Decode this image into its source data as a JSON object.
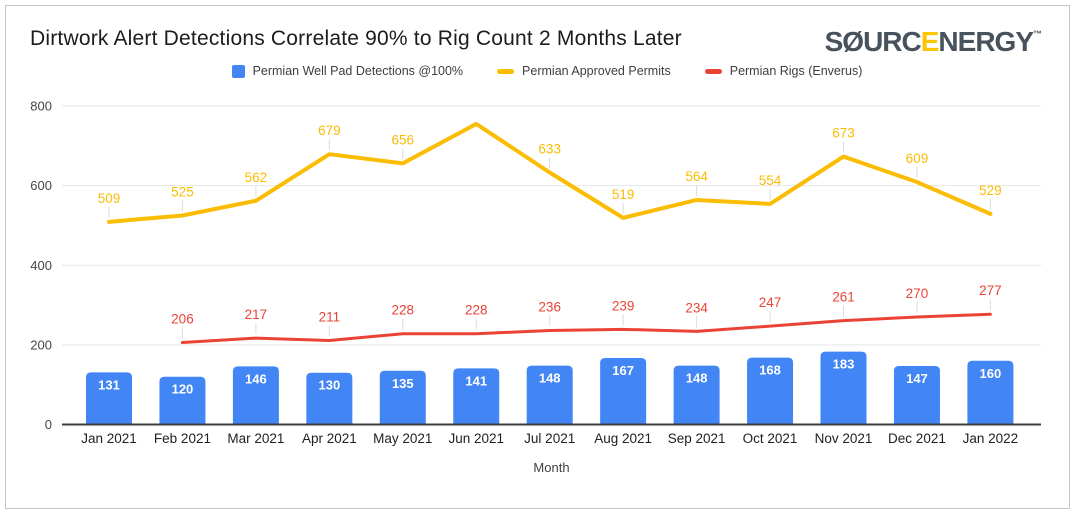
{
  "header": {
    "title": "Dirtwork Alert Detections Correlate 90% to Rig Count 2 Months Later",
    "logo": {
      "part1": "S",
      "slashed_o": "Ø",
      "part2": "URC",
      "accent_letter": "E",
      "part3": "NERGY",
      "trademark": "™"
    }
  },
  "legend": {
    "items": [
      {
        "label": "Permian Well Pad Detections @100%",
        "color": "#4285f4",
        "marker": "square"
      },
      {
        "label": "Permian Approved Permits",
        "color": "#fbbc04",
        "marker": "dash"
      },
      {
        "label": "Permian Rigs (Enverus)",
        "color": "#ea4335",
        "marker": "dash"
      }
    ]
  },
  "chart_data": {
    "type": "combo",
    "title": "Dirtwork Alert Detections Correlate 90% to Rig Count 2 Months Later",
    "categories": [
      "Jan 2021",
      "Feb 2021",
      "Mar 2021",
      "Apr 2021",
      "May 2021",
      "Jun 2021",
      "Jul 2021",
      "Aug 2021",
      "Sep 2021",
      "Oct 2021",
      "Nov 2021",
      "Dec 2021",
      "Jan 2022"
    ],
    "series": [
      {
        "name": "Permian Well Pad Detections @100%",
        "type": "bar",
        "color": "#4285f4",
        "values": [
          131,
          120,
          146,
          130,
          135,
          141,
          148,
          167,
          148,
          168,
          183,
          147,
          160
        ],
        "data_labels": [
          "131",
          "120",
          "146",
          "130",
          "135",
          "141",
          "148",
          "167",
          "148",
          "168",
          "183",
          "147",
          "160"
        ],
        "label_color": "#ffffff"
      },
      {
        "name": "Permian Approved Permits",
        "type": "line",
        "color": "#fbbc04",
        "values": [
          509,
          525,
          562,
          679,
          656,
          755,
          633,
          519,
          564,
          554,
          673,
          609,
          529
        ],
        "data_labels": [
          "509",
          "525",
          "562",
          "679",
          "656",
          "",
          "633",
          "519",
          "564",
          "554",
          "673",
          "609",
          "529"
        ],
        "label_color": "#fbbc04"
      },
      {
        "name": "Permian Rigs (Enverus)",
        "type": "line",
        "color": "#ea4335",
        "values": [
          null,
          206,
          217,
          211,
          228,
          228,
          236,
          239,
          234,
          247,
          261,
          270,
          277
        ],
        "data_labels": [
          "",
          "206",
          "217",
          "211",
          "228",
          "228",
          "236",
          "239",
          "234",
          "247",
          "261",
          "270",
          "277"
        ],
        "label_color": "#ea4335"
      }
    ],
    "xlabel": "Month",
    "ylim": [
      0,
      800
    ],
    "yticks": [
      0,
      200,
      400,
      600,
      800
    ],
    "grid": true,
    "legend_position": "top"
  },
  "colors": {
    "grid": "#e6e6e6",
    "axis": "#3d3d3d",
    "leader_tick": "#dcdcdc",
    "y_tick_text": "#444746",
    "x_tick_text": "#202124",
    "axis_title_text": "#3c4043"
  }
}
